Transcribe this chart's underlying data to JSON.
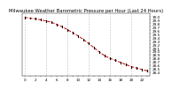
{
  "title": "Milwaukee Weather Barometric Pressure per Hour (Last 24 Hours)",
  "hours": [
    0,
    1,
    2,
    3,
    4,
    5,
    6,
    7,
    8,
    9,
    10,
    11,
    12,
    13,
    14,
    15,
    16,
    17,
    18,
    19,
    20,
    21,
    22,
    23
  ],
  "pressure": [
    29.97,
    29.95,
    29.93,
    29.9,
    29.87,
    29.83,
    29.77,
    29.7,
    29.62,
    29.53,
    29.44,
    29.34,
    29.22,
    29.1,
    28.98,
    28.87,
    28.8,
    28.74,
    28.68,
    28.62,
    28.56,
    28.52,
    28.48,
    28.44
  ],
  "line_color": "#cc0000",
  "marker_color": "#000000",
  "background_color": "#ffffff",
  "grid_color": "#888888",
  "ylim_min": 28.3,
  "ylim_max": 30.1,
  "ytick_values": [
    28.4,
    28.5,
    28.6,
    28.7,
    28.8,
    28.9,
    29.0,
    29.1,
    29.2,
    29.3,
    29.4,
    29.5,
    29.6,
    29.7,
    29.8,
    29.9,
    30.0
  ],
  "xtick_step": 2,
  "title_fontsize": 3.8,
  "tick_fontsize": 3.0,
  "linewidth": 0.7,
  "markersize": 2.5,
  "grid_positions": [
    0,
    4,
    8,
    12,
    16,
    20
  ]
}
